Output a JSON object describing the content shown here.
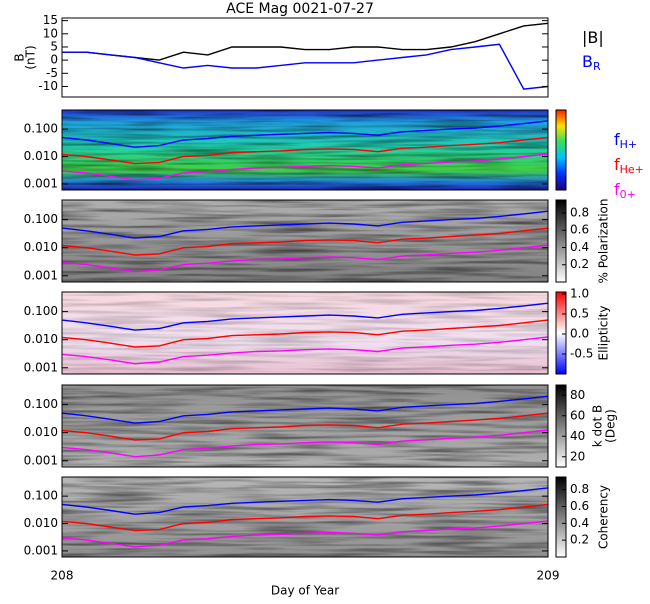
{
  "chart_data": [
    {
      "type": "line",
      "title": "ACE Mag 0021-07-27",
      "ylabel": [
        "B",
        "(nT)"
      ],
      "x": [
        208.0,
        208.05,
        208.1,
        208.15,
        208.2,
        208.25,
        208.3,
        208.35,
        208.4,
        208.45,
        208.5,
        208.55,
        208.6,
        208.65,
        208.7,
        208.75,
        208.8,
        208.85,
        208.9,
        208.95,
        209.0
      ],
      "series": [
        {
          "name": "|B|",
          "color": "#000000",
          "values": [
            3,
            3,
            2,
            1,
            0,
            3,
            2,
            5,
            5,
            5,
            4,
            4,
            5,
            5,
            4,
            4,
            5,
            7,
            10,
            13,
            14
          ]
        },
        {
          "name": "B",
          "name_sub": "R",
          "color": "#0000ff",
          "values": [
            3,
            3,
            2,
            1,
            -1,
            -3,
            -2,
            -3,
            -3,
            -2,
            -1,
            -1,
            -1,
            0,
            1,
            2,
            4,
            5,
            6,
            -11,
            -10
          ]
        }
      ],
      "xlim": [
        208,
        209
      ],
      "xticks": [
        208,
        209
      ],
      "ylim": [
        -14,
        16
      ],
      "yticks": [
        -10,
        -5,
        0,
        5,
        10,
        15
      ]
    },
    {
      "type": "spectrogram",
      "log_y": true,
      "x": [
        208.0,
        208.05,
        208.1,
        208.15,
        208.2,
        208.25,
        208.3,
        208.35,
        208.4,
        208.45,
        208.5,
        208.55,
        208.6,
        208.65,
        208.7,
        208.75,
        208.8,
        208.85,
        208.9,
        208.95,
        209.0
      ],
      "series": [
        {
          "name": "f",
          "name_sub": "H+",
          "color": "#0000ff",
          "values": [
            0.05,
            0.04,
            0.03,
            0.022,
            0.025,
            0.04,
            0.045,
            0.055,
            0.06,
            0.065,
            0.07,
            0.075,
            0.07,
            0.06,
            0.08,
            0.09,
            0.1,
            0.11,
            0.13,
            0.16,
            0.2
          ]
        },
        {
          "name": "f",
          "name_sub": "He+",
          "color": "#ff0000",
          "values": [
            0.012,
            0.01,
            0.0075,
            0.0055,
            0.006,
            0.01,
            0.011,
            0.014,
            0.015,
            0.016,
            0.018,
            0.019,
            0.018,
            0.015,
            0.02,
            0.022,
            0.025,
            0.028,
            0.032,
            0.04,
            0.05
          ]
        },
        {
          "name": "f",
          "name_sub": "0+",
          "color": "#ff00ff",
          "values": [
            0.003,
            0.0025,
            0.0019,
            0.0014,
            0.0016,
            0.0025,
            0.0028,
            0.0034,
            0.0038,
            0.004,
            0.0044,
            0.0047,
            0.0044,
            0.0038,
            0.005,
            0.0056,
            0.0063,
            0.0069,
            0.0081,
            0.01,
            0.0125
          ]
        }
      ],
      "xlim": [
        208,
        209
      ],
      "xticks": [
        208,
        209
      ],
      "ylim": [
        0.0006,
        0.5
      ],
      "yticks": [
        {
          "value": 0.001,
          "label": "0.001"
        },
        {
          "value": 0.01,
          "label": "0.010"
        },
        {
          "value": 0.1,
          "label": "0.100"
        }
      ]
    },
    {
      "type": "spectrogram",
      "log_y": true,
      "x": [
        208.0,
        208.05,
        208.1,
        208.15,
        208.2,
        208.25,
        208.3,
        208.35,
        208.4,
        208.45,
        208.5,
        208.55,
        208.6,
        208.65,
        208.7,
        208.75,
        208.8,
        208.85,
        208.9,
        208.95,
        209.0
      ],
      "series": [
        {
          "color": "#0000ff",
          "values": [
            0.05,
            0.04,
            0.03,
            0.022,
            0.025,
            0.04,
            0.045,
            0.055,
            0.06,
            0.065,
            0.07,
            0.075,
            0.07,
            0.06,
            0.08,
            0.09,
            0.1,
            0.11,
            0.13,
            0.16,
            0.2
          ]
        },
        {
          "color": "#ff0000",
          "values": [
            0.012,
            0.01,
            0.0075,
            0.0055,
            0.006,
            0.01,
            0.011,
            0.014,
            0.015,
            0.016,
            0.018,
            0.019,
            0.018,
            0.015,
            0.02,
            0.022,
            0.025,
            0.028,
            0.032,
            0.04,
            0.05
          ]
        },
        {
          "color": "#ff00ff",
          "values": [
            0.003,
            0.0025,
            0.0019,
            0.0014,
            0.0016,
            0.0025,
            0.0028,
            0.0034,
            0.0038,
            0.004,
            0.0044,
            0.0047,
            0.0044,
            0.0038,
            0.005,
            0.0056,
            0.0063,
            0.0069,
            0.0081,
            0.01,
            0.0125
          ]
        }
      ],
      "xlim": [
        208,
        209
      ],
      "xticks": [
        208,
        209
      ],
      "ylim": [
        0.0006,
        0.5
      ],
      "yticks": [
        {
          "value": 0.001,
          "label": "0.001"
        },
        {
          "value": 0.01,
          "label": "0.010"
        },
        {
          "value": 0.1,
          "label": "0.100"
        }
      ],
      "colorbar": {
        "label": "% Polarization",
        "lim": [
          0,
          0.95
        ],
        "ticks": [
          0.2,
          0.4,
          0.6,
          0.8
        ]
      }
    },
    {
      "type": "spectrogram",
      "log_y": true,
      "x": [
        208.0,
        208.05,
        208.1,
        208.15,
        208.2,
        208.25,
        208.3,
        208.35,
        208.4,
        208.45,
        208.5,
        208.55,
        208.6,
        208.65,
        208.7,
        208.75,
        208.8,
        208.85,
        208.9,
        208.95,
        209.0
      ],
      "series": [
        {
          "color": "#0000ff",
          "values": [
            0.05,
            0.04,
            0.03,
            0.022,
            0.025,
            0.04,
            0.045,
            0.055,
            0.06,
            0.065,
            0.07,
            0.075,
            0.07,
            0.06,
            0.08,
            0.09,
            0.1,
            0.11,
            0.13,
            0.16,
            0.2
          ]
        },
        {
          "color": "#ff0000",
          "values": [
            0.012,
            0.01,
            0.0075,
            0.0055,
            0.006,
            0.01,
            0.011,
            0.014,
            0.015,
            0.016,
            0.018,
            0.019,
            0.018,
            0.015,
            0.02,
            0.022,
            0.025,
            0.028,
            0.032,
            0.04,
            0.05
          ]
        },
        {
          "color": "#ff00ff",
          "values": [
            0.003,
            0.0025,
            0.0019,
            0.0014,
            0.0016,
            0.0025,
            0.0028,
            0.0034,
            0.0038,
            0.004,
            0.0044,
            0.0047,
            0.0044,
            0.0038,
            0.005,
            0.0056,
            0.0063,
            0.0069,
            0.0081,
            0.01,
            0.0125
          ]
        }
      ],
      "xlim": [
        208,
        209
      ],
      "xticks": [
        208,
        209
      ],
      "ylim": [
        0.0006,
        0.5
      ],
      "yticks": [
        {
          "value": 0.001,
          "label": "0.001"
        },
        {
          "value": 0.01,
          "label": "0.010"
        },
        {
          "value": 0.1,
          "label": "0.100"
        }
      ],
      "colorbar": {
        "label": "Ellipticity",
        "lim": [
          -1,
          1.05
        ],
        "ticks": [
          -0.5,
          {
            "value": 0,
            "label": "0.0"
          },
          0.5,
          {
            "value": 1,
            "label": "1.0"
          }
        ]
      }
    },
    {
      "type": "spectrogram",
      "log_y": true,
      "x": [
        208.0,
        208.05,
        208.1,
        208.15,
        208.2,
        208.25,
        208.3,
        208.35,
        208.4,
        208.45,
        208.5,
        208.55,
        208.6,
        208.65,
        208.7,
        208.75,
        208.8,
        208.85,
        208.9,
        208.95,
        209.0
      ],
      "series": [
        {
          "color": "#0000ff",
          "values": [
            0.05,
            0.04,
            0.03,
            0.022,
            0.025,
            0.04,
            0.045,
            0.055,
            0.06,
            0.065,
            0.07,
            0.075,
            0.07,
            0.06,
            0.08,
            0.09,
            0.1,
            0.11,
            0.13,
            0.16,
            0.2
          ]
        },
        {
          "color": "#ff0000",
          "values": [
            0.012,
            0.01,
            0.0075,
            0.0055,
            0.006,
            0.01,
            0.011,
            0.014,
            0.015,
            0.016,
            0.018,
            0.019,
            0.018,
            0.015,
            0.02,
            0.022,
            0.025,
            0.028,
            0.032,
            0.04,
            0.05
          ]
        },
        {
          "color": "#ff00ff",
          "values": [
            0.003,
            0.0025,
            0.0019,
            0.0014,
            0.0016,
            0.0025,
            0.0028,
            0.0034,
            0.0038,
            0.004,
            0.0044,
            0.0047,
            0.0044,
            0.0038,
            0.005,
            0.0056,
            0.0063,
            0.0069,
            0.0081,
            0.01,
            0.0125
          ]
        }
      ],
      "xlim": [
        208,
        209
      ],
      "xticks": [
        208,
        209
      ],
      "ylim": [
        0.0006,
        0.5
      ],
      "yticks": [
        {
          "value": 0.001,
          "label": "0.001"
        },
        {
          "value": 0.01,
          "label": "0.010"
        },
        {
          "value": 0.1,
          "label": "0.100"
        }
      ],
      "colorbar": {
        "label": [
          "k dot B",
          "(Deg)"
        ],
        "lim": [
          10,
          90
        ],
        "ticks": [
          20,
          40,
          60,
          80
        ]
      }
    },
    {
      "type": "spectrogram",
      "log_y": true,
      "xlabel": "Day of Year",
      "x": [
        208.0,
        208.05,
        208.1,
        208.15,
        208.2,
        208.25,
        208.3,
        208.35,
        208.4,
        208.45,
        208.5,
        208.55,
        208.6,
        208.65,
        208.7,
        208.75,
        208.8,
        208.85,
        208.9,
        208.95,
        209.0
      ],
      "series": [
        {
          "color": "#0000ff",
          "values": [
            0.05,
            0.04,
            0.03,
            0.022,
            0.025,
            0.04,
            0.045,
            0.055,
            0.06,
            0.065,
            0.07,
            0.075,
            0.07,
            0.06,
            0.08,
            0.09,
            0.1,
            0.11,
            0.13,
            0.16,
            0.2
          ]
        },
        {
          "color": "#ff0000",
          "values": [
            0.012,
            0.01,
            0.0075,
            0.0055,
            0.006,
            0.01,
            0.011,
            0.014,
            0.015,
            0.016,
            0.018,
            0.019,
            0.018,
            0.015,
            0.02,
            0.022,
            0.025,
            0.028,
            0.032,
            0.04,
            0.05
          ]
        },
        {
          "color": "#ff00ff",
          "values": [
            0.003,
            0.0025,
            0.0019,
            0.0014,
            0.0016,
            0.0025,
            0.0028,
            0.0034,
            0.0038,
            0.004,
            0.0044,
            0.0047,
            0.0044,
            0.0038,
            0.005,
            0.0056,
            0.0063,
            0.0069,
            0.0081,
            0.01,
            0.0125
          ]
        }
      ],
      "xlim": [
        208,
        209
      ],
      "xticks": [
        208,
        209
      ],
      "ylim": [
        0.0006,
        0.5
      ],
      "yticks": [
        {
          "value": 0.001,
          "label": "0.001"
        },
        {
          "value": 0.01,
          "label": "0.010"
        },
        {
          "value": 0.1,
          "label": "0.100"
        }
      ],
      "colorbar": {
        "label": "Coherency",
        "lim": [
          0,
          0.95
        ],
        "ticks": [
          0.2,
          0.4,
          0.6,
          0.8
        ]
      }
    }
  ]
}
